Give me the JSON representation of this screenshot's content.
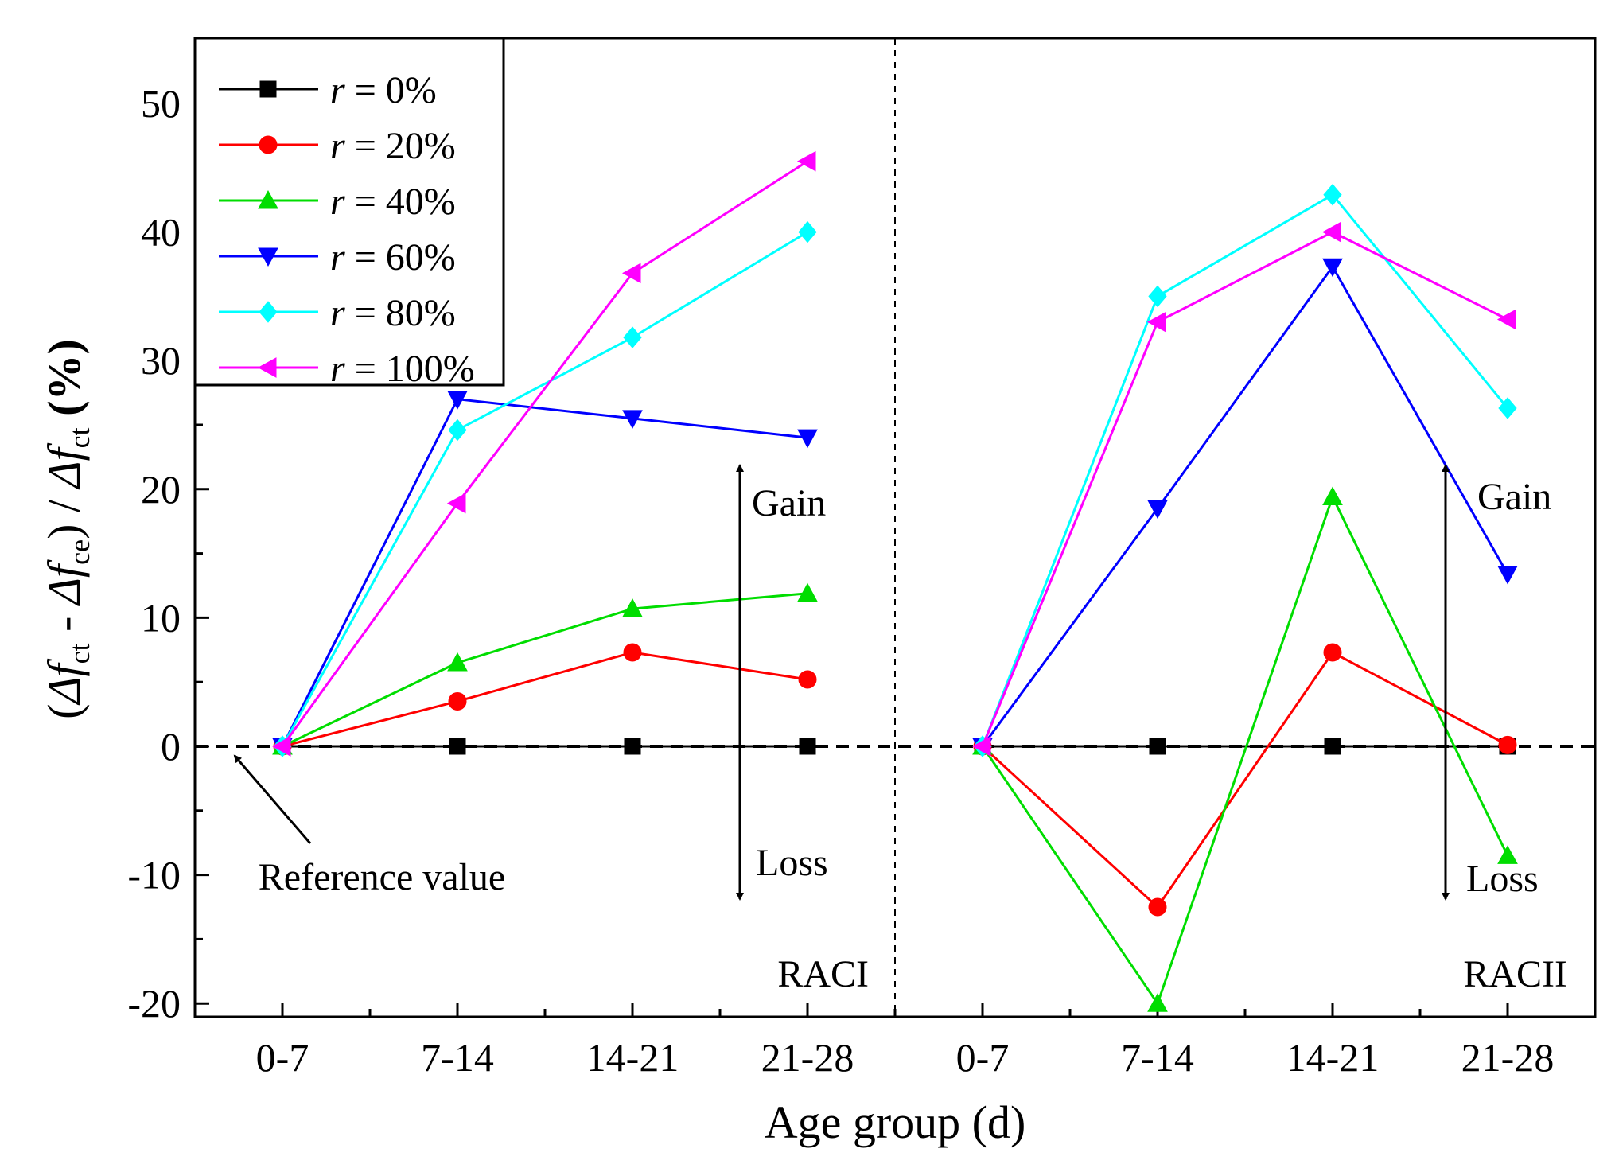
{
  "chart_data": {
    "type": "line",
    "title": "",
    "xlabel": "Age group (d)",
    "ylabel": "(Δf_ct - Δf_ce) / Δf_ct (%)",
    "ylim": [
      -20,
      55
    ],
    "yticks": [
      "-20",
      "-10",
      "0",
      "10",
      "20",
      "30",
      "40",
      "50"
    ],
    "ytick_values": [
      -20,
      -10,
      0,
      10,
      20,
      30,
      40,
      50
    ],
    "categories": [
      "0-7",
      "7-14",
      "14-21",
      "21-28"
    ],
    "panels": [
      {
        "name": "RACI",
        "label": "RACI"
      },
      {
        "name": "RACII",
        "label": "RACII"
      }
    ],
    "series": [
      {
        "name": "r = 0%",
        "legend_r": "r",
        "legend_rest": " = 0%",
        "color": "#000000",
        "marker": "square",
        "RACI": [
          0,
          0,
          0,
          0
        ],
        "RACII": [
          0,
          0,
          0,
          0
        ]
      },
      {
        "name": "r = 20%",
        "legend_r": "r",
        "legend_rest": " = 20%",
        "color": "#ff0000",
        "marker": "circle",
        "RACI": [
          0,
          3.5,
          7.3,
          5.2
        ],
        "RACII": [
          0,
          -12.5,
          7.3,
          0.1
        ]
      },
      {
        "name": "r = 40%",
        "legend_r": "r",
        "legend_rest": " = 40%",
        "color": "#00dd00",
        "marker": "triangle-up",
        "RACI": [
          0,
          6.5,
          10.7,
          11.9
        ],
        "RACII": [
          0,
          -20.0,
          19.4,
          -8.5
        ]
      },
      {
        "name": "r = 60%",
        "legend_r": "r",
        "legend_rest": " = 60%",
        "color": "#0000ff",
        "marker": "triangle-down",
        "RACI": [
          0,
          27.0,
          25.5,
          24.0
        ],
        "RACII": [
          0,
          18.5,
          37.3,
          13.4
        ]
      },
      {
        "name": "r = 80%",
        "legend_r": "r",
        "legend_rest": " = 80%",
        "color": "#00ffff",
        "marker": "diamond",
        "RACI": [
          0,
          24.6,
          31.8,
          40.0
        ],
        "RACII": [
          0,
          35.0,
          42.9,
          26.3
        ]
      },
      {
        "name": "r = 100%",
        "legend_r": "r",
        "legend_rest": " = 100%",
        "color": "#ff00ff",
        "marker": "triangle-left",
        "RACI": [
          0,
          18.9,
          36.8,
          45.5
        ],
        "RACII": [
          0,
          33.0,
          40.0,
          33.2
        ]
      }
    ],
    "annotations": {
      "reference": "Reference value",
      "gain": "Gain",
      "loss": "Loss"
    },
    "reference_line_y": 0,
    "legend_position": "top-left"
  }
}
